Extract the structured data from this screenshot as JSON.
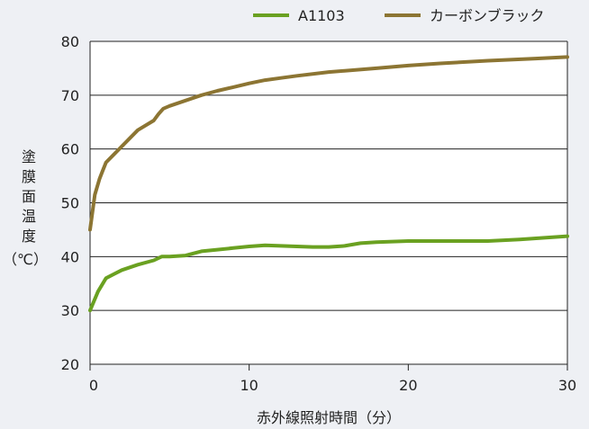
{
  "chart_data": {
    "type": "line",
    "xlabel": "赤外線照射時間（分）",
    "ylabel": "塗膜面温度（℃）",
    "xlim": [
      0,
      30
    ],
    "ylim": [
      20,
      80
    ],
    "xticks": [
      0,
      10,
      20,
      30
    ],
    "yticks": [
      20,
      30,
      40,
      50,
      60,
      70,
      80
    ],
    "grid": "horizontal",
    "legend": "top-right",
    "series": [
      {
        "name": "A1103",
        "color": "#6aa121",
        "x": [
          0,
          0.5,
          1,
          2,
          3,
          4,
          4.5,
          5,
          6,
          7,
          8,
          9,
          10,
          11,
          12,
          13,
          14,
          15,
          16,
          17,
          18,
          20,
          22,
          25,
          27,
          30
        ],
        "y": [
          30,
          33.5,
          36,
          37.5,
          38.5,
          39.3,
          40,
          40,
          40.2,
          41,
          41.3,
          41.6,
          41.9,
          42.1,
          42,
          41.9,
          41.8,
          41.8,
          42,
          42.5,
          42.7,
          42.9,
          42.9,
          42.9,
          43.2,
          43.8
        ]
      },
      {
        "name": "カーボンブラック",
        "color": "#8c7533",
        "x": [
          0,
          0.3,
          0.6,
          0.8,
          1,
          1.5,
          2,
          3,
          4,
          4.3,
          4.6,
          5,
          6,
          7,
          8,
          9,
          10,
          11,
          12,
          13,
          15,
          18,
          20,
          22,
          25,
          28,
          30
        ],
        "y": [
          45,
          51.5,
          54.5,
          56,
          57.5,
          59,
          60.5,
          63.5,
          65.3,
          66.5,
          67.5,
          68,
          69,
          70,
          70.8,
          71.5,
          72.2,
          72.8,
          73.2,
          73.6,
          74.3,
          75,
          75.5,
          75.9,
          76.4,
          76.8,
          77.1
        ]
      }
    ]
  }
}
